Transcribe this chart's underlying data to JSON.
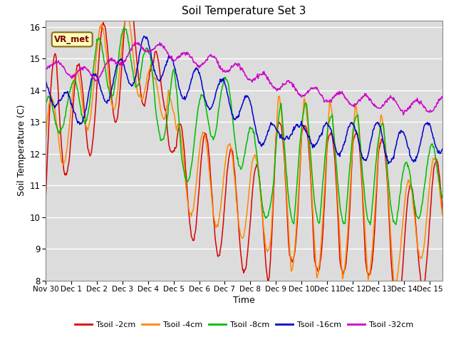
{
  "title": "Soil Temperature Set 3",
  "xlabel": "Time",
  "ylabel": "Soil Temperature (C)",
  "ylim": [
    8.0,
    16.2
  ],
  "yticks": [
    8.0,
    9.0,
    10.0,
    11.0,
    12.0,
    13.0,
    14.0,
    15.0,
    16.0
  ],
  "bg_color": "#dcdcdc",
  "fig_color": "#ffffff",
  "vr_met_label": "VR_met",
  "series": [
    {
      "label": "Tsoil -2cm",
      "color": "#dd0000",
      "centers": [
        10.5,
        14.1,
        12.5,
        13.5,
        15.8,
        13.1,
        15.1,
        11.1,
        11.2,
        9.6,
        12.6,
        9.0,
        12.6,
        8.7,
        12.3,
        8.6,
        12.3,
        8.6,
        12.0,
        8.6,
        10.2
      ],
      "times": [
        0.0,
        0.4,
        1.0,
        1.5,
        3.7,
        4.2,
        4.7,
        5.1,
        5.5,
        8.7,
        9.0,
        9.5,
        10.0,
        10.5,
        11.0,
        11.5,
        12.0,
        12.5,
        13.0,
        13.5,
        15.5
      ]
    },
    {
      "label": "Tsoil -4cm",
      "color": "#ff8800",
      "centers": [
        11.8,
        13.2,
        12.8,
        14.5,
        15.2,
        13.0,
        15.0,
        11.5,
        11.5,
        10.3,
        12.6,
        9.5,
        12.5,
        9.3,
        12.4,
        9.3,
        12.3,
        9.3,
        12.0,
        9.3,
        10.7
      ],
      "times": [
        0.0,
        0.5,
        1.0,
        1.8,
        3.7,
        4.2,
        4.8,
        5.1,
        5.6,
        8.8,
        9.1,
        9.6,
        10.1,
        10.6,
        11.1,
        11.6,
        12.1,
        12.6,
        13.1,
        13.6,
        15.5
      ]
    },
    {
      "label": "Tsoil -8cm",
      "color": "#00bb00",
      "centers": [
        12.6,
        13.8,
        13.2,
        14.6,
        15.2,
        13.2,
        13.8,
        11.8,
        13.8,
        10.5,
        12.9,
        10.5,
        12.9,
        10.5,
        12.5,
        10.5,
        12.5,
        10.5,
        12.2,
        10.5,
        11.5
      ],
      "times": [
        0.0,
        0.6,
        1.0,
        2.0,
        3.8,
        4.3,
        5.0,
        5.3,
        6.8,
        8.9,
        9.2,
        9.7,
        10.2,
        10.7,
        11.2,
        11.7,
        12.2,
        12.7,
        13.2,
        13.7,
        15.5
      ]
    },
    {
      "label": "Tsoil -16cm",
      "color": "#0000cc",
      "centers": [
        13.8,
        14.1,
        13.1,
        13.9,
        14.6,
        15.2,
        14.8,
        14.4,
        13.6,
        12.3,
        13.1,
        12.3,
        13.0,
        12.2,
        12.8,
        12.2,
        12.7,
        12.1,
        12.6,
        12.1,
        12.6
      ],
      "times": [
        0.0,
        0.5,
        1.0,
        1.8,
        3.3,
        3.8,
        4.5,
        5.0,
        7.5,
        9.0,
        9.4,
        9.9,
        10.3,
        10.8,
        11.2,
        11.7,
        12.2,
        12.6,
        13.1,
        13.6,
        15.5
      ]
    },
    {
      "label": "Tsoil -32cm",
      "color": "#cc00cc",
      "centers": [
        14.9,
        14.7,
        14.6,
        14.5,
        15.3,
        15.4,
        15.2,
        15.0,
        14.9,
        14.5,
        14.2,
        14.0,
        13.8,
        13.7,
        13.6,
        13.6,
        13.5,
        13.5,
        13.5,
        13.5,
        13.6
      ],
      "times": [
        0.0,
        0.5,
        1.0,
        2.0,
        3.5,
        4.0,
        4.8,
        5.5,
        6.5,
        8.0,
        9.0,
        10.0,
        11.0,
        12.0,
        13.0,
        13.5,
        14.0,
        14.5,
        15.0,
        15.3,
        15.5
      ]
    }
  ],
  "x_tick_labels": [
    "Nov 30",
    "Dec 1",
    "Dec 2",
    "Dec 3",
    "Dec 4",
    "Dec 5",
    "Dec 6",
    "Dec 7",
    "Dec 8",
    "Dec 9",
    "Dec 10",
    "Dec 11",
    "Dec 12",
    "Dec 13",
    "Dec 14",
    "Dec 15"
  ],
  "n_days": 15.5,
  "n_points": 744
}
